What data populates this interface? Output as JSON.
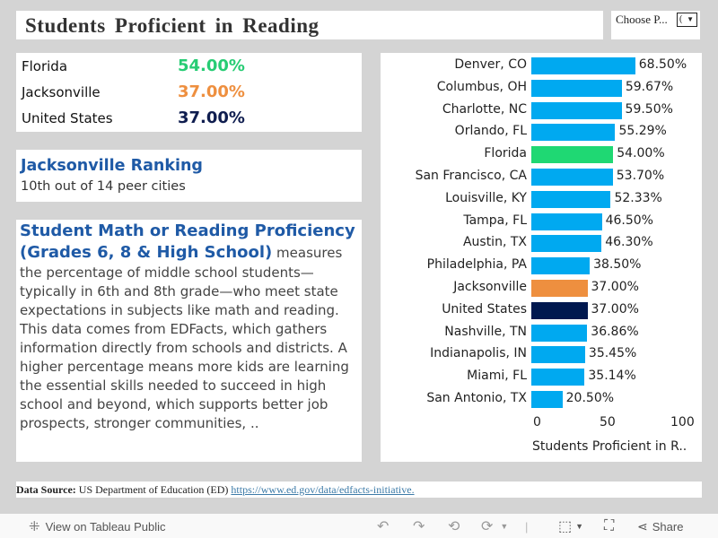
{
  "title": "Students Proficient in Reading",
  "filter": {
    "label": "Choose P...",
    "value": "(",
    "arrow": "▼"
  },
  "metrics": [
    {
      "name": "Florida",
      "value": "54.00%",
      "color": "#27cc74"
    },
    {
      "name": "Jacksonville",
      "value": "37.00%",
      "color": "#ee8f3f"
    },
    {
      "name": "United States",
      "value": "37.00%",
      "color": "#0f1d4f"
    }
  ],
  "ranking": {
    "heading": "Jacksonville Ranking",
    "text": "10th out of 14 peer cities"
  },
  "description": {
    "heading": "Student Math or Reading Proficiency (Grades 6, 8 & High School)",
    "body": " measures the percentage of middle school students—typically in 6th and 8th grade—who meet state expectations in subjects like math and reading. This data comes from EDFacts, which gathers information directly from schools and districts. A higher percentage means more kids are learning the essential skills needed to succeed in high school and beyond, which supports better job prospects, stronger communities, .."
  },
  "colors": {
    "default_bar": "#00a9f0",
    "florida": "#1fd873",
    "jacksonville": "#ee8f3f",
    "united_states": "#00184f"
  },
  "chart_data": {
    "type": "bar",
    "orientation": "horizontal",
    "title": "Students Proficient in Reading",
    "xlabel": "Students Proficient in R..",
    "ylabel": "",
    "xlim": [
      0,
      100
    ],
    "xticks": [
      "0",
      "50",
      "100"
    ],
    "grid": false,
    "categories": [
      "Denver, CO",
      "Columbus, OH",
      "Charlotte, NC",
      "Orlando, FL",
      "Florida",
      "San Francisco, CA",
      "Louisville, KY",
      "Tampa, FL",
      "Austin, TX",
      "Philadelphia, PA",
      "Jacksonville",
      "United States",
      "Nashville, TN",
      "Indianapolis, IN",
      "Miami, FL",
      "San Antonio, TX"
    ],
    "values": [
      68.5,
      59.67,
      59.5,
      55.29,
      54.0,
      53.7,
      52.33,
      46.5,
      46.3,
      38.5,
      37.0,
      37.0,
      36.86,
      35.45,
      35.14,
      20.5
    ],
    "labels": [
      "68.50%",
      "59.67%",
      "59.50%",
      "55.29%",
      "54.00%",
      "53.70%",
      "52.33%",
      "46.50%",
      "46.30%",
      "38.50%",
      "37.00%",
      "37.00%",
      "36.86%",
      "35.45%",
      "35.14%",
      "20.50%"
    ],
    "highlight": {
      "Florida": "#1fd873",
      "Jacksonville": "#ee8f3f",
      "United States": "#00184f"
    }
  },
  "source": {
    "label": "Data Source:",
    "text": " US Department of Education (ED) ",
    "link": "https://www.ed.gov/data/edfacts-initiative."
  },
  "footer": {
    "view_label": "View on Tableau Public",
    "share_label": "Share"
  }
}
